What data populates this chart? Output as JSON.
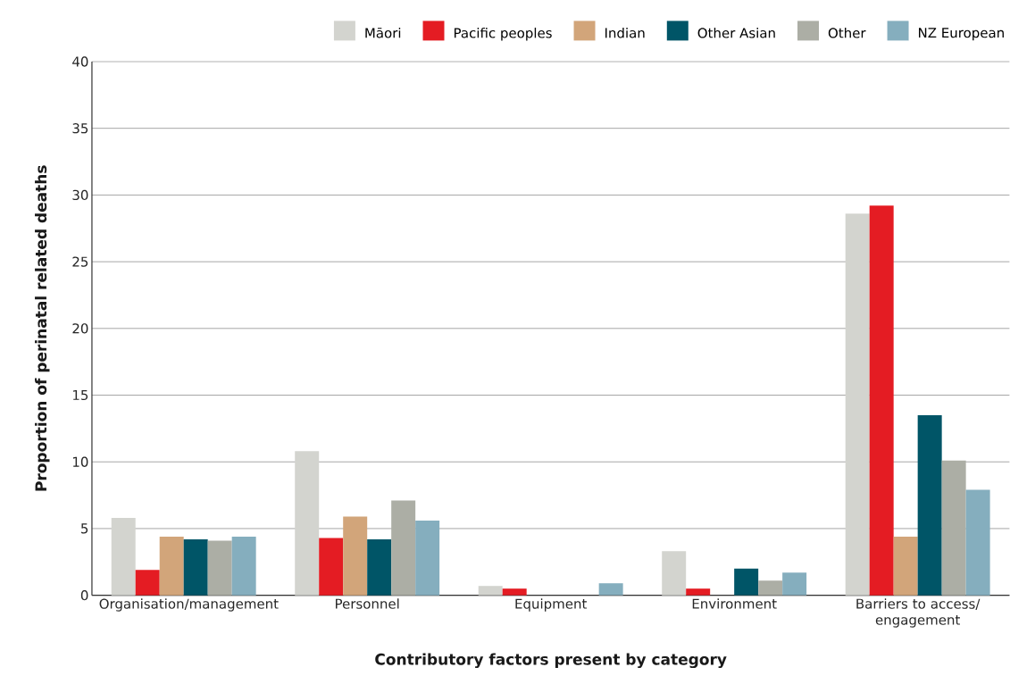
{
  "chart_data": {
    "type": "bar",
    "xlabel": "Contributory factors present by category",
    "ylabel": "Proportion of perinatal related deaths",
    "categories": [
      "Organisation/management",
      "Personnel",
      "Equipment",
      "Environment",
      "Barriers to access/ engagement"
    ],
    "series": [
      {
        "name": "Māori",
        "color": "#d3d4cf",
        "values": [
          5.8,
          10.8,
          0.7,
          3.3,
          28.6
        ]
      },
      {
        "name": "Pacific peoples",
        "color": "#e41c23",
        "values": [
          1.9,
          4.3,
          0.5,
          0.5,
          29.2
        ]
      },
      {
        "name": "Indian",
        "color": "#d2a57a",
        "values": [
          4.4,
          5.9,
          0,
          0,
          4.4
        ]
      },
      {
        "name": "Other Asian",
        "color": "#005567",
        "values": [
          4.2,
          4.2,
          0,
          2.0,
          13.5
        ]
      },
      {
        "name": "Other",
        "color": "#acaea5",
        "values": [
          4.1,
          7.1,
          0,
          1.1,
          10.1
        ]
      },
      {
        "name": "NZ European",
        "color": "#85aebe",
        "values": [
          4.4,
          5.6,
          0.9,
          1.7,
          7.9
        ]
      }
    ],
    "ylim": [
      0,
      40
    ],
    "yticks": [
      0,
      5,
      10,
      15,
      20,
      25,
      30,
      35,
      40
    ],
    "grid": "y",
    "legend": "top right"
  }
}
